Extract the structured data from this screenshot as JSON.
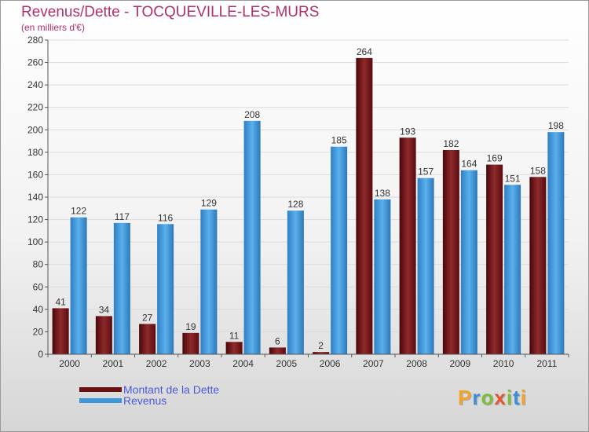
{
  "header": {
    "title": "Revenus/Dette - TOCQUEVILLE-LES-MURS",
    "subtitle": "(en milliers d'€)"
  },
  "legend": [
    {
      "label": "Montant de la Dette",
      "color": "#6e0f12"
    },
    {
      "label": "Revenus",
      "color": "#3d97dd"
    }
  ],
  "logo": {
    "letters": [
      "P",
      "r",
      "o",
      "x",
      "i",
      "t",
      "i"
    ]
  },
  "chart_data": {
    "type": "bar",
    "title": "Revenus/Dette - TOCQUEVILLE-LES-MURS",
    "ylabel": "(en milliers d'€)",
    "xlabel": "",
    "ylim": [
      0,
      280
    ],
    "yticks": [
      0,
      20,
      40,
      60,
      80,
      100,
      120,
      140,
      160,
      180,
      200,
      220,
      240,
      260,
      280
    ],
    "grid": true,
    "categories": [
      "2000",
      "2001",
      "2002",
      "2003",
      "2004",
      "2005",
      "2006",
      "2007",
      "2008",
      "2009",
      "2010",
      "2011"
    ],
    "series": [
      {
        "name": "Montant de la Dette",
        "color": "#6e0f12",
        "values": [
          41,
          34,
          27,
          19,
          11,
          6,
          2,
          264,
          193,
          182,
          169,
          158
        ]
      },
      {
        "name": "Revenus",
        "color": "#3d97dd",
        "values": [
          122,
          117,
          116,
          129,
          208,
          128,
          185,
          138,
          157,
          164,
          151,
          198
        ]
      }
    ]
  }
}
